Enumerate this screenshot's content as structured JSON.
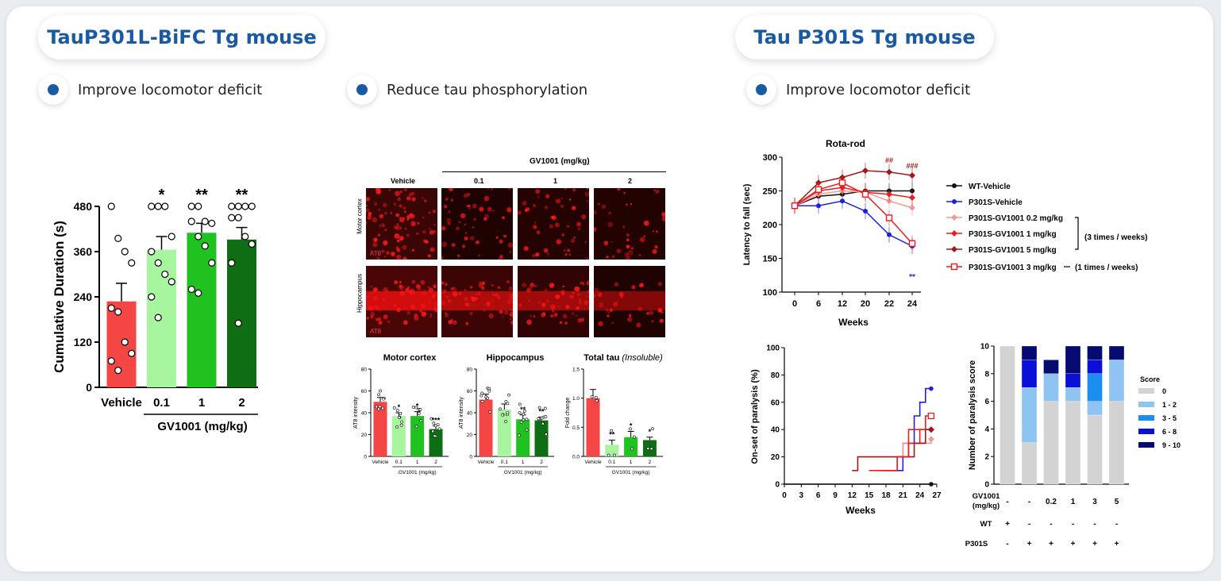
{
  "sections": {
    "left_title": "TauP301L-BiFC Tg mouse",
    "right_title": "Tau P301S Tg mouse"
  },
  "bullets": {
    "b1": "Improve locomotor deficit",
    "b2": "Reduce tau phosphorylation",
    "b3": "Improve locomotor deficit"
  },
  "micro": {
    "header": "GV1001 (mg/kg)",
    "cols": [
      "Vehicle",
      "0.1",
      "1",
      "2"
    ],
    "rows": [
      "Motor cortex",
      "Hippocampus"
    ],
    "stain": "AT8"
  },
  "colors": {
    "title_blue": "#1a5aa2",
    "vehicle_red": "#f54646",
    "light_green": "#a8f5a0",
    "green": "#1fc21f",
    "dark_green": "#0f6d14"
  },
  "chart_data": [
    {
      "id": "cumulative_duration",
      "type": "bar",
      "categories": [
        "Vehicle",
        "0.1",
        "1",
        "2"
      ],
      "values": [
        228,
        365,
        410,
        392
      ],
      "errors": [
        48,
        35,
        25,
        32
      ],
      "significance": [
        "",
        "*",
        "**",
        "**"
      ],
      "points": [
        [
          480,
          395,
          360,
          330,
          210,
          200,
          120,
          90,
          70,
          45
        ],
        [
          480,
          480,
          480,
          400,
          360,
          330,
          300,
          280,
          240,
          185
        ],
        [
          480,
          480,
          440,
          435,
          440,
          400,
          375,
          330,
          260,
          250
        ],
        [
          480,
          480,
          480,
          480,
          450,
          450,
          400,
          380,
          330,
          170
        ]
      ],
      "ylabel": "Cumulative Duration (s)",
      "xlabel": "GV1001 (mg/kg)",
      "yticks": [
        0,
        120,
        240,
        360,
        480
      ],
      "ylim": [
        0,
        480
      ]
    },
    {
      "id": "motor_cortex_at8",
      "type": "bar",
      "title": "Motor cortex",
      "categories": [
        "Vehicle",
        "0.1",
        "1",
        "2"
      ],
      "values": [
        50,
        37,
        37,
        25
      ],
      "errors": [
        4,
        3,
        4,
        3
      ],
      "significance": [
        "",
        "*",
        "*",
        "***"
      ],
      "ylabel": "AT8 intensity",
      "xlabel": "GV1001 (mg/kg)",
      "yticks": [
        0,
        20,
        40,
        60,
        80
      ],
      "ylim": [
        0,
        80
      ]
    },
    {
      "id": "hippocampus_at8",
      "type": "bar",
      "title": "Hippocampus",
      "categories": [
        "Vehicle",
        "0.1",
        "1",
        "2"
      ],
      "values": [
        52,
        43,
        34,
        33
      ],
      "errors": [
        5,
        5,
        4,
        3
      ],
      "significance": [
        "",
        "",
        "**",
        "**"
      ],
      "ylabel": "AT8 intensity",
      "xlabel": "GV1001 (mg/kg)",
      "yticks": [
        0,
        20,
        40,
        60,
        80
      ],
      "ylim": [
        0,
        80
      ]
    },
    {
      "id": "total_tau_insoluble",
      "type": "bar",
      "title": "Total tau",
      "title_italic": "(Insoluble)",
      "categories": [
        "Vehicle",
        "0.1",
        "1",
        "2"
      ],
      "values": [
        1.0,
        0.2,
        0.33,
        0.28
      ],
      "errors": [
        0.15,
        0.08,
        0.1,
        0.05
      ],
      "significance": [
        "",
        "**",
        "*",
        "*"
      ],
      "ylabel": "Fold change",
      "xlabel": "GV1001 (mg/kg)",
      "yticks": [
        0.0,
        0.5,
        1.0,
        1.5
      ],
      "ylim": [
        0,
        1.5
      ]
    },
    {
      "id": "rota_rod",
      "type": "line",
      "title": "Rota-rod",
      "x": [
        0,
        6,
        12,
        20,
        22,
        24
      ],
      "xlabel": "Weeks",
      "ylabel": "Latency to fall (sec)",
      "ylim": [
        100,
        300
      ],
      "yticks": [
        100,
        150,
        200,
        250,
        300
      ],
      "series": [
        {
          "name": "WT-Vehicle",
          "values": [
            228,
            242,
            245,
            250,
            250,
            250
          ],
          "color": "#111111",
          "marker": "circle"
        },
        {
          "name": "P301S-Vehicle",
          "values": [
            228,
            228,
            235,
            220,
            185,
            168
          ],
          "color": "#1f1fe0",
          "marker": "circle"
        },
        {
          "name": "P301S-GV1001 0.2 mg/kg",
          "values": [
            228,
            245,
            250,
            248,
            235,
            225
          ],
          "color": "#f29a9a",
          "marker": "diamond"
        },
        {
          "name": "P301S-GV1001 1 mg/kg",
          "values": [
            228,
            250,
            255,
            248,
            245,
            240
          ],
          "color": "#ee1c1c",
          "marker": "diamond"
        },
        {
          "name": "P301S-GV1001 5 mg/kg",
          "values": [
            228,
            262,
            270,
            280,
            278,
            273
          ],
          "color": "#a01818",
          "marker": "diamond"
        },
        {
          "name": "P301S-GV1001 3 mg/kg",
          "values": [
            228,
            252,
            262,
            245,
            210,
            172
          ],
          "color": "#ee1c1c",
          "marker": "open-square"
        }
      ],
      "annotations": [
        "##",
        "###",
        "**"
      ],
      "group_labels": [
        "(3 times / weeks)",
        "(1 times / weeks)"
      ]
    },
    {
      "id": "paralysis_onset",
      "type": "line",
      "xlabel": "Weeks",
      "ylabel": "On-set of paralysis (%)",
      "xticks": [
        0,
        3,
        6,
        9,
        12,
        15,
        18,
        21,
        24,
        27
      ],
      "yticks": [
        0,
        20,
        40,
        60,
        80,
        100
      ],
      "ylim": [
        0,
        100
      ],
      "series": [
        {
          "name": "WT-Vehicle",
          "x": [
            0,
            26
          ],
          "values": [
            0,
            0
          ],
          "color": "#111111"
        },
        {
          "name": "P301S-Vehicle",
          "x": [
            18,
            21,
            22,
            23,
            24,
            25,
            26
          ],
          "values": [
            10,
            30,
            30,
            50,
            60,
            70,
            70
          ],
          "color": "#1f1fe0"
        },
        {
          "name": "P301S-GV1001 0.2 mg/kg",
          "x": [
            18,
            20,
            21,
            22,
            26
          ],
          "values": [
            10,
            20,
            30,
            30,
            33
          ],
          "color": "#f29a9a"
        },
        {
          "name": "P301S-GV1001 1 mg/kg",
          "x": [
            17,
            20,
            22,
            24,
            26
          ],
          "values": [
            10,
            20,
            30,
            40,
            40
          ],
          "color": "#ee1c1c"
        },
        {
          "name": "P301S-GV1001 5 mg/kg",
          "x": [
            12,
            13,
            21,
            23,
            25,
            26
          ],
          "values": [
            10,
            20,
            20,
            30,
            40,
            40
          ],
          "color": "#a01818"
        },
        {
          "name": "P301S-GV1001 3 mg/kg",
          "x": [
            15,
            20,
            22,
            25,
            26
          ],
          "values": [
            10,
            20,
            40,
            50,
            50
          ],
          "color": "#ee1c1c"
        }
      ]
    },
    {
      "id": "paralysis_score",
      "type": "bar",
      "stacked": true,
      "ylabel": "Number of paralysis score",
      "yticks": [
        0,
        2,
        4,
        6,
        8,
        10
      ],
      "ylim": [
        0,
        10
      ],
      "legend_title": "Score",
      "legend": [
        "0",
        "1 - 2",
        "3 - 5",
        "6 - 8",
        "9 - 10"
      ],
      "legend_colors": [
        "#d3d3d3",
        "#8fc3f2",
        "#1a8ff0",
        "#0a10d8",
        "#050b70"
      ],
      "groups": [
        {
          "gv1001": "-",
          "wt": "+",
          "p301s": "-",
          "stack": [
            10,
            0,
            0,
            0,
            0
          ]
        },
        {
          "gv1001": "-",
          "wt": "-",
          "p301s": "+",
          "stack": [
            3,
            4,
            0,
            2,
            1
          ]
        },
        {
          "gv1001": "0.2",
          "wt": "-",
          "p301s": "+",
          "stack": [
            6,
            2,
            0,
            0,
            1
          ]
        },
        {
          "gv1001": "1",
          "wt": "-",
          "p301s": "+",
          "stack": [
            6,
            1,
            0,
            1,
            2
          ]
        },
        {
          "gv1001": "3",
          "wt": "-",
          "p301s": "+",
          "stack": [
            5,
            1,
            2,
            1,
            1
          ]
        },
        {
          "gv1001": "5",
          "wt": "-",
          "p301s": "+",
          "stack": [
            6,
            3,
            0,
            0,
            1
          ]
        }
      ],
      "row_labels": [
        "GV1001\n(mg/kg)",
        "WT",
        "P301S"
      ]
    }
  ]
}
